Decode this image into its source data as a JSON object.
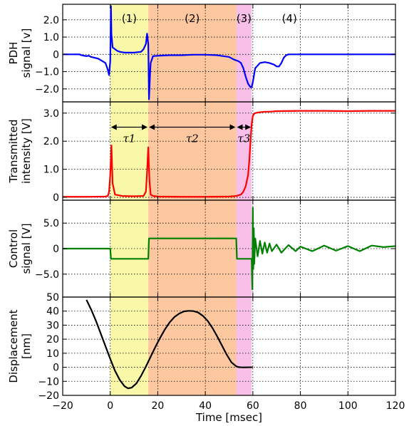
{
  "figure": {
    "xlabel": "Time [msec]",
    "xlim": [
      -20,
      120
    ],
    "xticks": [
      -20,
      0,
      20,
      40,
      60,
      80,
      100,
      120
    ],
    "xtick_labels": [
      "−20",
      "0",
      "20",
      "40",
      "60",
      "80",
      "100",
      "120"
    ],
    "regions": [
      {
        "label": "(1)",
        "x0": 0,
        "x1": 16,
        "color": "#f8f8a8"
      },
      {
        "label": "(2)",
        "x0": 16,
        "x1": 53,
        "color": "#fdc8a0"
      },
      {
        "label": "(3)",
        "x0": 53,
        "x1": 59.5,
        "color": "#f8c0e8"
      },
      {
        "label": "(4)",
        "x0": 59.5,
        "x1": 120,
        "color": null
      }
    ]
  },
  "chart_data": [
    {
      "type": "line",
      "panel": "pdh",
      "ylabel_lines": [
        "PDH",
        "signal [v]"
      ],
      "ylim": [
        -2.75,
        2.9
      ],
      "yticks": [
        2.0,
        1.0,
        0,
        -1.0,
        -2.0
      ],
      "ytick_labels": [
        "2.0",
        "1.0",
        "0",
        "−1.0",
        "−2.0"
      ],
      "grid": true,
      "series": [
        {
          "color": "#0000ff",
          "x": [
            -20,
            -13,
            -12,
            -11,
            -10,
            -9,
            -8,
            -5,
            -2,
            -1,
            -0.5,
            0,
            0.3,
            0.5,
            1,
            2,
            3,
            4,
            6,
            10,
            13,
            14,
            15,
            15.5,
            16,
            16.3,
            16.8,
            17,
            18,
            20,
            25,
            30,
            35,
            40,
            45,
            50,
            52,
            54,
            55,
            56,
            57,
            58,
            59,
            59.5,
            60,
            61,
            63,
            65,
            67,
            69,
            70,
            71,
            72,
            73,
            74,
            75,
            80,
            90,
            100,
            110,
            120
          ],
          "y": [
            0,
            0,
            -0.05,
            -0.08,
            -0.1,
            -0.08,
            -0.15,
            -0.25,
            -0.5,
            -0.9,
            -1.2,
            -0.4,
            2.8,
            1.2,
            0.4,
            0.3,
            0.2,
            0.15,
            0.1,
            0.1,
            0.15,
            0.3,
            0.6,
            1.2,
            0.6,
            -2.6,
            -1.0,
            -0.5,
            -0.1,
            -0.08,
            -0.05,
            -0.05,
            -0.02,
            -0.02,
            -0.05,
            -0.15,
            -0.3,
            -0.4,
            -0.5,
            -0.8,
            -1.3,
            -1.7,
            -1.9,
            -1.9,
            -1.6,
            -0.8,
            -0.5,
            -0.45,
            -0.5,
            -0.6,
            -0.7,
            -0.7,
            -0.5,
            -0.2,
            -0.05,
            0,
            0,
            0,
            0,
            0,
            0
          ]
        }
      ]
    },
    {
      "type": "line",
      "panel": "transmitted",
      "ylabel_lines": [
        "Transmitted",
        "intensity [V]"
      ],
      "ylim": [
        -0.1,
        3.4
      ],
      "yticks": [
        3.0,
        2.0,
        1.0,
        0
      ],
      "ytick_labels": [
        "3.0",
        "2.0",
        "1.0",
        "0"
      ],
      "grid": true,
      "series": [
        {
          "color": "#ff0000",
          "x": [
            -20,
            -10,
            -2,
            -1,
            -0.5,
            0,
            0.5,
            1,
            2,
            5,
            10,
            14,
            15,
            15.5,
            16,
            16.5,
            17,
            18,
            20,
            30,
            40,
            50,
            53,
            55,
            56,
            57,
            58,
            58.5,
            59,
            59.5,
            60,
            60.5,
            61,
            62,
            63,
            65,
            67,
            70,
            80,
            90,
            100,
            110,
            120
          ],
          "y": [
            0.02,
            0.02,
            0.03,
            0.05,
            0.2,
            0.8,
            1.85,
            0.5,
            0.1,
            0.05,
            0.04,
            0.05,
            0.2,
            0.9,
            1.78,
            0.6,
            0.1,
            0.05,
            0.03,
            0.02,
            0.02,
            0.03,
            0.05,
            0.1,
            0.2,
            0.4,
            0.8,
            1.3,
            2.0,
            2.6,
            2.9,
            2.97,
            3.0,
            3.02,
            3.03,
            3.05,
            3.05,
            3.07,
            3.08,
            3.08,
            3.07,
            3.08,
            3.08
          ]
        }
      ],
      "annotations": [
        {
          "label": "τ1",
          "from": 0,
          "to": 16,
          "y": 2.5
        },
        {
          "label": "τ2",
          "from": 16,
          "to": 53,
          "y": 2.5
        },
        {
          "label": "τ3",
          "from": 53,
          "to": 59.5,
          "y": 2.5
        }
      ]
    },
    {
      "type": "line",
      "panel": "control",
      "ylabel_lines": [
        "Control",
        "signal [V]"
      ],
      "ylim": [
        -9.5,
        9.5
      ],
      "yticks": [
        5.0,
        0,
        -5.0
      ],
      "ytick_labels": [
        "5.0",
        "0",
        "−5.0"
      ],
      "grid": true,
      "series": [
        {
          "color": "#008000",
          "x": [
            -20,
            0,
            0.3,
            16,
            16.3,
            53,
            53.3,
            59.5,
            59.8,
            60,
            60.2,
            60.4,
            60.6,
            61,
            62,
            63,
            64,
            65,
            66,
            67,
            68,
            70,
            72,
            75,
            78,
            80,
            85,
            90,
            95,
            100,
            105,
            110,
            115,
            120
          ],
          "y": [
            0,
            0,
            -2,
            -2,
            2,
            2,
            -2,
            -2,
            -8,
            8,
            -4,
            4,
            -3,
            2,
            -1.5,
            1.5,
            -1,
            1.2,
            -0.8,
            1,
            -0.5,
            0.8,
            -0.8,
            0.7,
            -0.5,
            0.4,
            -0.5,
            0.6,
            -0.4,
            0.5,
            -0.5,
            0.6,
            0.3,
            0.5
          ]
        }
      ]
    },
    {
      "type": "line",
      "panel": "displacement",
      "ylabel_lines": [
        "Displacement",
        "[nm]"
      ],
      "ylim": [
        -20,
        50
      ],
      "yticks": [
        50,
        40,
        30,
        20,
        10,
        0,
        -10,
        -20
      ],
      "ytick_labels": [
        "50",
        "40",
        "30",
        "20",
        "10",
        "0",
        "−10",
        "−20"
      ],
      "grid": true,
      "series": [
        {
          "color": "#000000",
          "x": [
            -10,
            -8,
            -6,
            -4,
            -2,
            0,
            2,
            4,
            6,
            7.5,
            9,
            11,
            13,
            15,
            17,
            19,
            21,
            23,
            25,
            27,
            29,
            31,
            33,
            35,
            37,
            39,
            41,
            43,
            45,
            47,
            49,
            51,
            53,
            54,
            55,
            56,
            57,
            58,
            59,
            60
          ],
          "y": [
            48,
            41,
            33,
            24,
            15,
            6,
            -2.5,
            -9,
            -13.5,
            -15,
            -14.5,
            -11.5,
            -6,
            0.5,
            7.5,
            14.5,
            21,
            27,
            32,
            35.8,
            38.2,
            39.8,
            40.2,
            40,
            39,
            36.6,
            33,
            28,
            22,
            15.5,
            9,
            3.5,
            0.7,
            0.1,
            0,
            -0.05,
            -0.05,
            0,
            0,
            0
          ]
        }
      ]
    }
  ]
}
